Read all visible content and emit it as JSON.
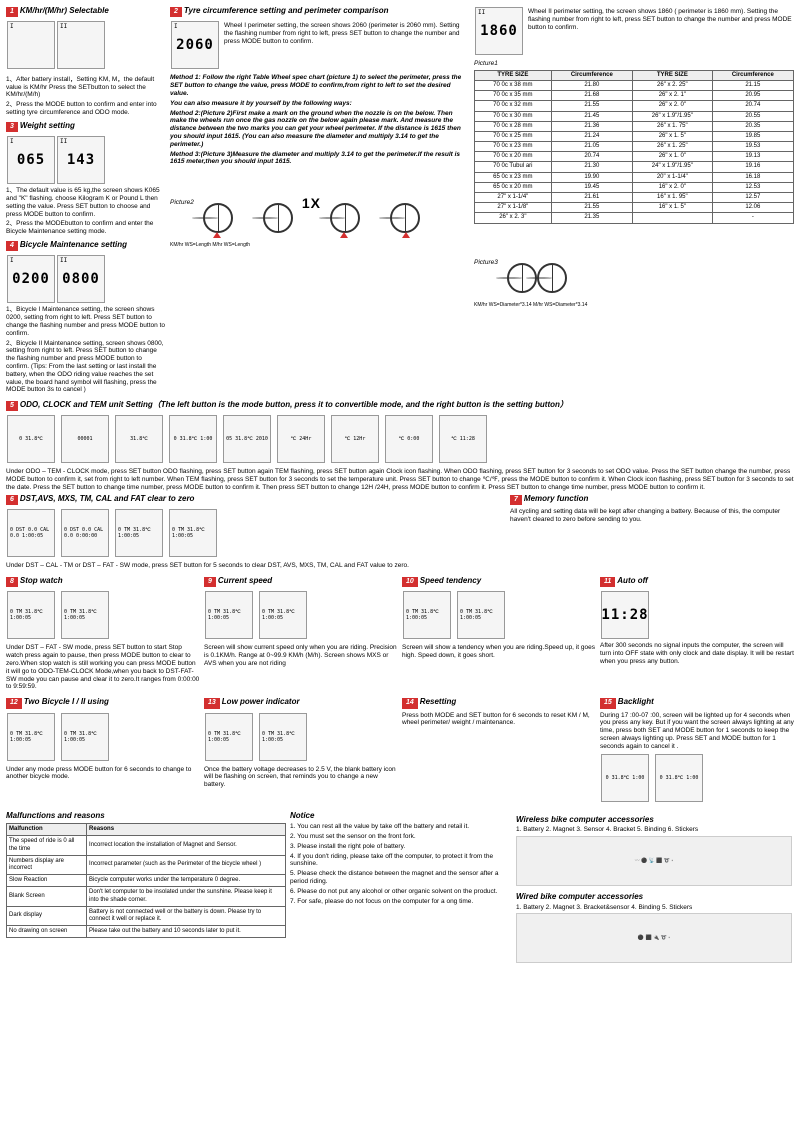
{
  "s1": {
    "num": "1",
    "title": "KM/hr/(M/hr) Selectable",
    "lcd1": "I",
    "lcd2": "II",
    "text1": "1、After battery install，Setting KM, M，the default value is KM/hr Press the SETbutton to select the KM/hr/(M/h)",
    "text2": "2、Press the MODE button to confirm and enter into setting tyre circumference and ODO mode."
  },
  "s2": {
    "num": "2",
    "title": "Tyre circumference setting and perimeter comparison",
    "lcd1_label": "I",
    "lcd1": "2060",
    "lcd2_label": "II",
    "lcd2": "1860",
    "text1": "Wheel I perimeter setting, the screen shows 2060 (perimeter is 2060 mm). Setting the flashing number from right to left, press SET button to change the number and press MODE button to confirm.",
    "text2": "Wheel II perimeter setting, the screen shows 1860 ( perimeter is 1860 mm). Setting the flashing number from right to left, press SET button to change the number and press MODE button to confirm.",
    "method1": "Method 1: Follow the right Table Wheel spec chart (picture 1) to select the perimeter, press the SET button to change the value, press MODE to confirm,from right to left to set the desired value.",
    "caption": "You can also measure it by yourself by the following ways:",
    "method2": "Method 2:(Picture 2)First make a mark on the ground when the nozzle is on the below. Then make the wheels run once the gas nozzle on the below again please mark. And measure the distance between the two marks you can get your wheel perimeter. If the distance is 1615 then you should input 1615. (You can also measure the diameter and multiply 3.14 to get the perimeter.)",
    "method3": "Method 3:(Picture 3)Measure the diameter and multiply 3.14 to get the perimeter.If the result is 1615 meter,then you should input 1615.",
    "picture1": "Picture1",
    "picture2": "Picture2",
    "picture3": "Picture3",
    "bike_label1": "KM/hr WS=Length M/hr WS=Length",
    "bike_label2": "KM/hr WS=Diameter*3.14 M/hr WS=Diameter*3.14"
  },
  "s3": {
    "num": "3",
    "title": "Weight setting",
    "lcd1_label": "I",
    "lcd1": "065",
    "lcd2_label": "II",
    "lcd2": "143",
    "text1": "1、The default value is 65 kg,the screen shows K065 and \"K\" flashing. choose Kilogram K or Pound L then setting the value. Press SET button to choose and press MODE button to confirm.",
    "text2": "2、Press the MODEbutton to confirm and enter the Bicycle Maintenance setting mode."
  },
  "s4": {
    "num": "4",
    "title": "Bicycle Maintenance setting",
    "lcd1_label": "I",
    "lcd1": "0200",
    "lcd2_label": "II",
    "lcd2": "0800",
    "text1": "1、Bicycle I Maintenance setting, the screen shows 0200, setting from right to left. Press SET button to change the flashing number and press MODE button to confirm.",
    "text2": "2、Bicycle II Maintenance setting, screen shows 0800, setting from right to left. Press SET button to change the flashing number and press MODE button to confirm. (Tips: From the last setting or last install the battery, when the ODO riding value reaches the set value, the board hand symbol will flashing, press the MODE button 3s to cancel )"
  },
  "s5": {
    "num": "5",
    "title": "ODO, CLOCK and TEM unit Setting",
    "subtitle": "（The left button is the mode button, press it to convertible mode, and the right button is the setting button）",
    "lcd": [
      "0 31.8℃",
      "00001",
      "31.8℃",
      "0 31.8℃ 1:00",
      "05 31.8℃ 2010",
      "℃ 24Hr",
      "℃ 12Hr",
      "℃ 0:00",
      "℃ 11:28"
    ],
    "text": "Under ODO – TEM - CLOCK mode, press SET button ODO flashing, press SET button again TEM flashing, press SET button again Clock icon flashing. When ODO flashing, press SET button for 3 seconds to set ODO value. Press the SET button change the number, press MODE button to confirm it, set from right to left number. When TEM flashing, press SET button for 3 seconds to set the temperature unit. Press SET button to change ℃/℉, press the MODE button to confirm it. When Clock icon flashing, press SET button for 3 seconds to set the date. Press the SET button to change time number, press MODE button to confirm it. Then press SET button to change 12H /24H, press MODE button to confirm it. Press SET button to change time number, press MODE button to confirm it."
  },
  "s6": {
    "num": "6",
    "title": "DST,AVS, MXS, TM, CAL and FAT clear to zero",
    "lcd": [
      "0 DST 0.0 CAL 0.0 1:00:05",
      "0 DST 0.0 CAL 0.0 0:00:00",
      "0 TM 31.8℃ 1:00:05",
      "0 TM 31.8℃ 1:00:05"
    ],
    "text": "Under DST – CAL - TM or DST – FAT - SW mode, press SET button for 5 seconds to clear DST, AVS, MXS, TM, CAL and FAT value to zero."
  },
  "s7": {
    "num": "7",
    "title": "Memory function",
    "text": "All cycling and setting data will be kept after changing a battery. Because of this, the computer haven't cleared to zero before sending to you."
  },
  "s8": {
    "num": "8",
    "title": "Stop watch",
    "lcd": [
      "0 TM 31.8℃ 1:00:05",
      "0 TM 31.8℃ 1:00:05"
    ],
    "text": "Under DST – FAT - SW mode, press SET button to start Stop watch press again to pause, then press MODE button to clear to zero.When stop watch is still working you can press MODE button it will go to ODO-TEM-CLOCK Mode,when you back to DST-FAT-SW mode you can pause and clear it to zero.It ranges from 0:00:00 to 9:59:59."
  },
  "s9": {
    "num": "9",
    "title": "Current speed",
    "lcd": [
      "0 TM 31.8℃ 1:00:05",
      "0 TM 31.8℃ 1:00:05"
    ],
    "text": "Screen will show current speed only when you are riding. Precision is 0.1KM/h. Range at 0~99.9 KM/h (M/h). Screen shows MXS or AVS when you are not riding"
  },
  "s10": {
    "num": "10",
    "title": "Speed tendency",
    "lcd": [
      "0 TM 31.8℃ 1:00:05",
      "0 TM 31.8℃ 1:00:05"
    ],
    "text": "Screen will show a tendency when you are riding.Speed up, it goes high. Speed down, it goes short."
  },
  "s11": {
    "num": "11",
    "title": "Auto off",
    "lcd": "11:28",
    "text": "After 300 seconds no signal inputs the computer, the screen will turn into OFF state with only clock and date display. It will be restart when you press any button."
  },
  "s12": {
    "num": "12",
    "title": "Two Bicycle I / II using",
    "lcd": [
      "0 TM 31.8℃ 1:00:05",
      "0 TM 31.8℃ 1:00:05"
    ],
    "text": "Under any mode press MODE button for 6 seconds to change to another bicycle mode."
  },
  "s13": {
    "num": "13",
    "title": "Low power indicator",
    "lcd": [
      "0 TM 31.8℃ 1:00:05",
      "0 TM 31.8℃ 1:00:05"
    ],
    "text": "Once the battery voltage decreases to 2.5 V, the blank battery icon will be flashing on screen, that reminds you to change a new battery."
  },
  "s14": {
    "num": "14",
    "title": "Resetting",
    "text": "Press both MODE and SET button for 6 seconds to reset KM / M, wheel perimeter/ weight / maintenance."
  },
  "s15": {
    "num": "15",
    "title": "Backlight",
    "lcd": [
      "0 31.8℃ 1:00",
      "0 31.8℃ 1:00"
    ],
    "text": "During 17 :00-07 :00, screen will be lighted up for 4 seconds when you press any key. But if you want the screen always lighting at any time, press both SET and MODE button for 1 seconds to keep the screen always lighting up. Press SET and MODE button for 1 seconds again to cancel it ."
  },
  "tyre_table": {
    "h1": "TYRE SIZE",
    "h2": "Circumference",
    "h3": "TYRE SIZE",
    "h4": "Circumference",
    "rows": [
      [
        "70 0c x 38 mm",
        "21.80",
        "26\" x 2. 25\"",
        "21.15"
      ],
      [
        "70 0c x 35 mm",
        "21.68",
        "26\" x 2. 1\"",
        "20.95"
      ],
      [
        "70 0c x 32 mm",
        "21.55",
        "26\" x 2. 0\"",
        "20.74"
      ],
      [
        "70 0c x 30 mm",
        "21.45",
        "26\" x 1.9\"/1.95\"",
        "20.55"
      ],
      [
        "70 0c x 28 mm",
        "21.36",
        "26\" x 1. 75\"",
        "20.35"
      ],
      [
        "70 0c x 25 mm",
        "21.24",
        "26\" x 1. 5\"",
        "19.85"
      ],
      [
        "70 0c x 23 mm",
        "21.05",
        "26\" x 1. 25\"",
        "19.53"
      ],
      [
        "70 0c x 20 mm",
        "20.74",
        "26\" x 1. 0\"",
        "19.13"
      ],
      [
        "70 0c Tubul ari",
        "21.30",
        "24\" x 1.9\"/1.95\"",
        "19.16"
      ],
      [
        "65 0c x 23 mm",
        "19.90",
        "20\" x 1-1/4\"",
        "16.18"
      ],
      [
        "65 0c x 20 mm",
        "19.45",
        "16\" x 2. 0\"",
        "12.53"
      ],
      [
        "27\" x 1-1/4\"",
        "21.61",
        "16\" x 1. 95\"",
        "12.57"
      ],
      [
        "27\" x 1-1/8\"",
        "21.55",
        "16\" x 1. 5\"",
        "12.06"
      ],
      [
        "26\" x 2. 3\"",
        "21.35",
        "",
        "-"
      ]
    ]
  },
  "malfunction": {
    "title": "Malfunctions and reasons",
    "h1": "Malfunction",
    "h2": "Reasons",
    "rows": [
      [
        "The speed of ride is 0 all the time",
        "Incorrect location the installation of Magnet and Sensor."
      ],
      [
        "Numbers display are incorrect",
        "Incorrect parameter (such as the Perimeter of the bicycle wheel )"
      ],
      [
        "Slow Reaction",
        "Bicycle computer works under the temperature 0 degree."
      ],
      [
        "Blank Screen",
        "Don't let computer to be insolated under the sunshine. Please keep it into the shade corner."
      ],
      [
        "Dark display",
        "Battery is not connected well or the battery is down. Please try to connect it well or replace it."
      ],
      [
        "No drawing on screen",
        "Please take out the battery and 10 seconds later to put it."
      ]
    ]
  },
  "notice": {
    "title": "Notice",
    "items": [
      "1. You can rest all the value by take off the battery and retail it.",
      "2. You must set the sensor on the front fork.",
      "3. Please install the right pole of battery.",
      "4. If you don't riding, please take off the computer, to protect it from the sunshine.",
      "5. Please check the distance between the magnet and the sensor after a period riding.",
      "6. Please do not put any alcohol or other organic solvent on the product.",
      "7. For safe, please do not focus on the computer for a ong time."
    ]
  },
  "wireless": {
    "title": "Wireless bike computer accessories",
    "items": "1. Battery  2. Magnet  3. Sensor  4. Bracket  5. Binding  6. Stickers"
  },
  "wired": {
    "title": "Wired bike computer accessories",
    "items": "1. Battery  2. Magnet  3. Bracket&sensor  4. Binding  5. Stickers"
  },
  "onex": "1X"
}
